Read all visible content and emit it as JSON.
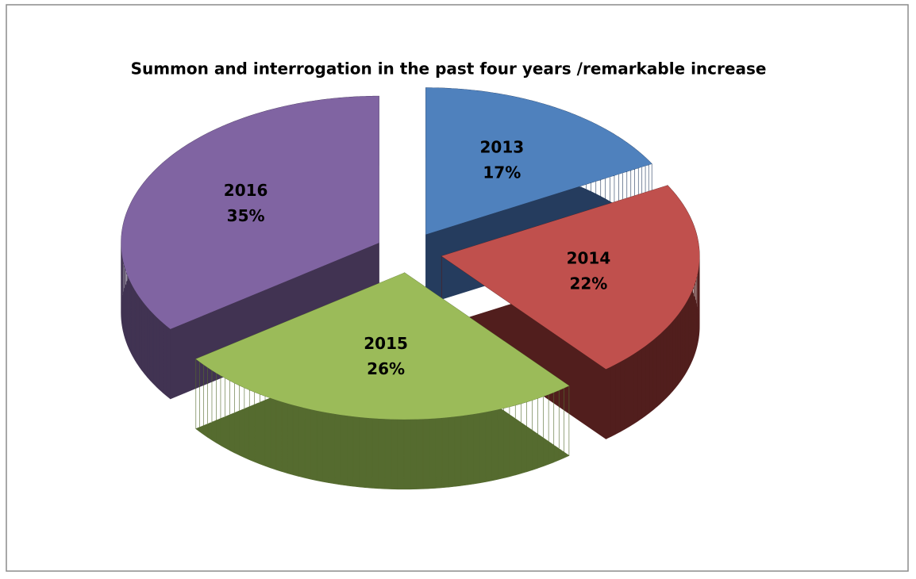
{
  "chart_data": {
    "type": "pie",
    "title": "Summon and interrogation in the past four years /remarkable increase",
    "categories": [
      "2013",
      "2014",
      "2015",
      "2016"
    ],
    "values": [
      17,
      22,
      26,
      35
    ],
    "value_labels": [
      "17%",
      "22%",
      "26%",
      "35%"
    ],
    "colors": [
      "#4f81bd",
      "#c0504d",
      "#9bbb59",
      "#8064a2"
    ],
    "side_colors": [
      "#253c5e",
      "#511e1d",
      "#556b2f",
      "#413352"
    ]
  }
}
